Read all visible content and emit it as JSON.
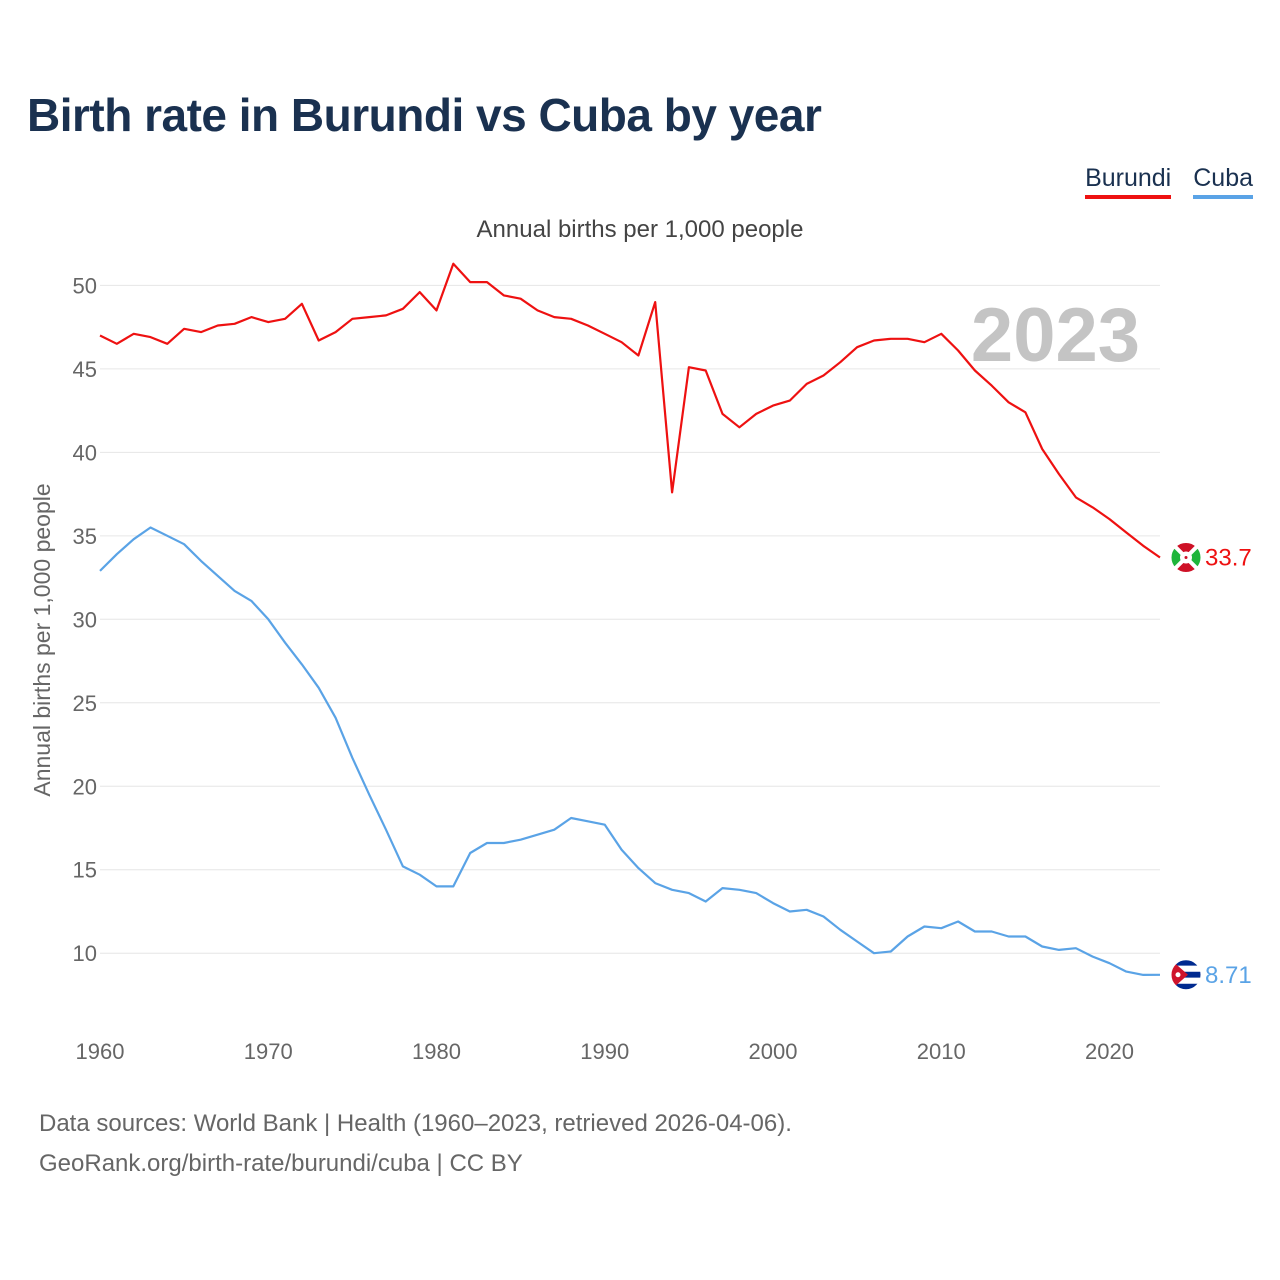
{
  "title": "Birth rate in Burundi vs Cuba by year",
  "subtitle": "Annual births per 1,000 people",
  "legend": [
    {
      "name": "Burundi",
      "color": "#ee1111"
    },
    {
      "name": "Cuba",
      "color": "#5aa3e6"
    }
  ],
  "footer": {
    "line1": "Data sources: World Bank | Health (1960–2023, retrieved 2026-04-06).",
    "line2": "GeoRank.org/birth-rate/burundi/cuba | CC BY"
  },
  "chart_data": {
    "type": "line",
    "title": "Birth rate in Burundi vs Cuba by year",
    "ylabel": "Annual births per 1,000 people",
    "xlabel": "",
    "year_label": "2023",
    "xlim": [
      1960,
      2023
    ],
    "ylim": [
      6,
      52
    ],
    "x_ticks": [
      1960,
      1970,
      1980,
      1990,
      2000,
      2010,
      2020
    ],
    "y_ticks": [
      10,
      15,
      20,
      25,
      30,
      35,
      40,
      45,
      50
    ],
    "x": [
      1960,
      1961,
      1962,
      1963,
      1964,
      1965,
      1966,
      1967,
      1968,
      1969,
      1970,
      1971,
      1972,
      1973,
      1974,
      1975,
      1976,
      1977,
      1978,
      1979,
      1980,
      1981,
      1982,
      1983,
      1984,
      1985,
      1986,
      1987,
      1988,
      1989,
      1990,
      1991,
      1992,
      1993,
      1994,
      1995,
      1996,
      1997,
      1998,
      1999,
      2000,
      2001,
      2002,
      2003,
      2004,
      2005,
      2006,
      2007,
      2008,
      2009,
      2010,
      2011,
      2012,
      2013,
      2014,
      2015,
      2016,
      2017,
      2018,
      2019,
      2020,
      2021,
      2022,
      2023
    ],
    "series": [
      {
        "name": "Burundi",
        "color": "#ee1111",
        "end_label": "33.7",
        "values": [
          47.0,
          46.5,
          47.1,
          46.9,
          46.5,
          47.4,
          47.2,
          47.6,
          47.7,
          48.1,
          47.8,
          48.0,
          48.9,
          46.7,
          47.2,
          48.0,
          48.1,
          48.2,
          48.6,
          49.6,
          48.5,
          51.3,
          50.2,
          50.2,
          49.4,
          49.2,
          48.5,
          48.1,
          48.0,
          47.6,
          47.1,
          46.6,
          45.8,
          49.0,
          37.6,
          45.1,
          44.9,
          42.3,
          41.5,
          42.3,
          42.8,
          43.1,
          44.1,
          44.6,
          45.4,
          46.3,
          46.7,
          46.8,
          46.8,
          46.6,
          47.1,
          46.1,
          44.9,
          44.0,
          43.0,
          42.4,
          40.2,
          38.7,
          37.3,
          36.7,
          36.0,
          35.2,
          34.4,
          33.7
        ]
      },
      {
        "name": "Cuba",
        "color": "#5aa3e6",
        "end_label": "8.71",
        "values": [
          32.9,
          33.9,
          34.8,
          35.5,
          35.0,
          34.5,
          33.5,
          32.6,
          31.7,
          31.1,
          30.0,
          28.6,
          27.3,
          25.9,
          24.1,
          21.7,
          19.5,
          17.4,
          15.2,
          14.7,
          14.0,
          14.0,
          16.0,
          16.6,
          16.6,
          16.8,
          17.1,
          17.4,
          18.1,
          17.9,
          17.7,
          16.2,
          15.1,
          14.2,
          13.8,
          13.6,
          13.1,
          13.9,
          13.8,
          13.6,
          13.0,
          12.5,
          12.6,
          12.2,
          11.4,
          10.7,
          10.0,
          10.1,
          11.0,
          11.6,
          11.5,
          11.9,
          11.3,
          11.3,
          11.0,
          11.0,
          10.4,
          10.2,
          10.3,
          9.8,
          9.4,
          8.9,
          8.7,
          8.71
        ]
      }
    ]
  }
}
